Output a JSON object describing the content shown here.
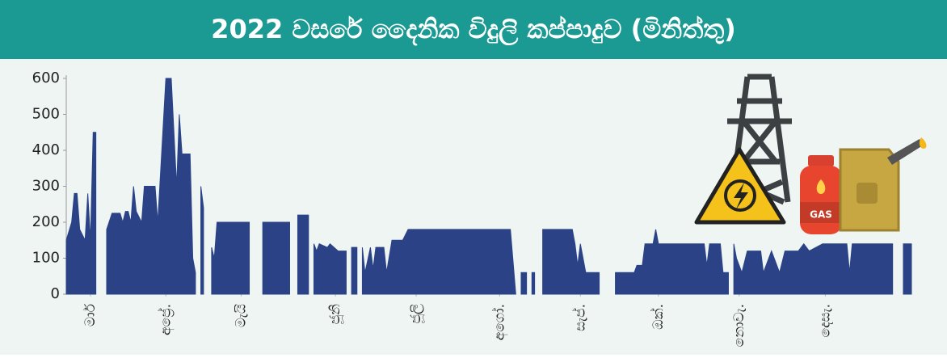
{
  "chart_data": {
    "type": "area",
    "title": "2022 වසරේ දෛනික විදුලි කප්පාදුව (මිනිත්තු)",
    "annotation": "GAS",
    "color": "#2b4386",
    "xlim": [
      0,
      314
    ],
    "xticks": [
      {
        "value": 9,
        "label": "මාර්"
      },
      {
        "value": 37,
        "label": "අප්‍රේ."
      },
      {
        "value": 65,
        "label": "මැයි"
      },
      {
        "value": 100,
        "label": "ජූනි"
      },
      {
        "value": 130,
        "label": "ජූලි"
      },
      {
        "value": 161,
        "label": "අගෝ."
      },
      {
        "value": 191,
        "label": "සැප්."
      },
      {
        "value": 220,
        "label": "ඔක්."
      },
      {
        "value": 250,
        "label": "නොවැ."
      },
      {
        "value": 282,
        "label": "දෙසැ."
      }
    ],
    "ylim": [
      0,
      600
    ],
    "yticks": [
      0,
      100,
      200,
      300,
      400,
      500,
      600
    ],
    "x": [
      0,
      2,
      3,
      4,
      5,
      7,
      8,
      9,
      10,
      11,
      12,
      15,
      17,
      20,
      21,
      22,
      23,
      24,
      25,
      26,
      28,
      29,
      33,
      34,
      37,
      39,
      41,
      42,
      43,
      46,
      47,
      48,
      49,
      50,
      51,
      52,
      54,
      55,
      56,
      68,
      70,
      73,
      83,
      84,
      86,
      90,
      91,
      92,
      93,
      94,
      97,
      98,
      101,
      104,
      105,
      106,
      108,
      109,
      110,
      111,
      113,
      114,
      115,
      118,
      119,
      121,
      125,
      127,
      165,
      167,
      168,
      169,
      171,
      172,
      173,
      174,
      175,
      177,
      188,
      189,
      190,
      191,
      193,
      197,
      198,
      200,
      204,
      211,
      212,
      214,
      215,
      218,
      219,
      220,
      237,
      238,
      239,
      243,
      244,
      246,
      247,
      248,
      249,
      251,
      253,
      258,
      259,
      262,
      265,
      267,
      272,
      274,
      276,
      281,
      290,
      291,
      292,
      307,
      309,
      311,
      314
    ],
    "values": [
      150,
      200,
      280,
      280,
      180,
      150,
      280,
      150,
      450,
      450,
      null,
      180,
      225,
      225,
      200,
      230,
      230,
      200,
      300,
      230,
      200,
      300,
      300,
      200,
      600,
      600,
      300,
      500,
      390,
      390,
      100,
      60,
      null,
      300,
      240,
      null,
      130,
      100,
      200,
      200,
      null,
      200,
      200,
      null,
      220,
      220,
      null,
      140,
      120,
      140,
      130,
      140,
      120,
      120,
      null,
      130,
      130,
      null,
      130,
      60,
      130,
      70,
      130,
      130,
      60,
      150,
      150,
      180,
      180,
      0,
      null,
      60,
      60,
      null,
      60,
      60,
      null,
      180,
      180,
      140,
      80,
      140,
      60,
      60,
      60,
      null,
      60,
      60,
      80,
      80,
      140,
      140,
      180,
      140,
      140,
      80,
      140,
      140,
      60,
      60,
      null,
      140,
      100,
      60,
      120,
      120,
      60,
      120,
      60,
      120,
      120,
      140,
      120,
      140,
      140,
      60,
      140,
      140,
      null,
      140,
      140
    ]
  }
}
